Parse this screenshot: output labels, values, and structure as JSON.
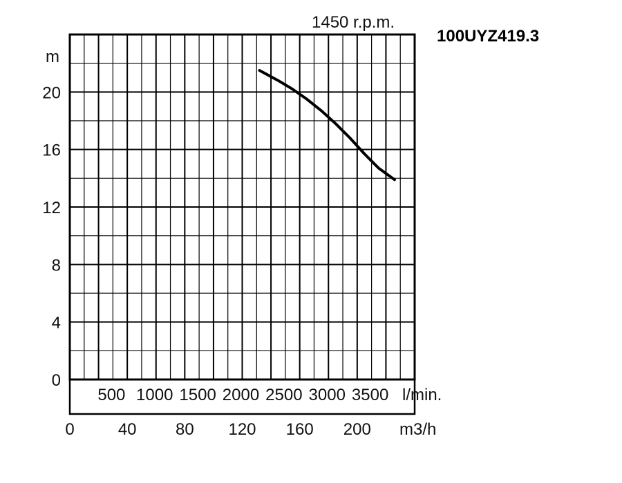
{
  "chart_data": {
    "type": "line",
    "title": "100UYZ419.3",
    "subtitle": "1450 r.p.m.",
    "ylabel": "m",
    "xlabel": "m3/h",
    "xlabel_secondary": "l/min.",
    "xlim": [
      0,
      240
    ],
    "ylim": [
      0,
      24
    ],
    "grid": true,
    "y_ticks": [
      0,
      4,
      8,
      12,
      16,
      20
    ],
    "x_ticks": [
      0,
      40,
      80,
      120,
      160,
      200
    ],
    "x_ticks_secondary": [
      500,
      1000,
      1500,
      2000,
      2500,
      3000,
      3500
    ],
    "series": [
      {
        "x": [
          132,
          145,
          155,
          165,
          175,
          185,
          195,
          205,
          215,
          226
        ],
        "y": [
          21.5,
          20.8,
          20.2,
          19.5,
          18.7,
          17.8,
          16.8,
          15.7,
          14.7,
          13.9
        ]
      }
    ],
    "colors": {
      "line": "#000000",
      "grid": "#000000",
      "text": "#111111"
    }
  }
}
